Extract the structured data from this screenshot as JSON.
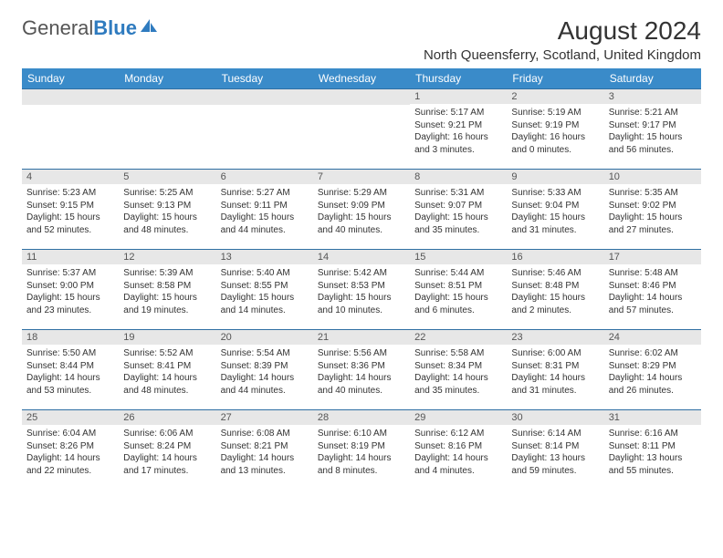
{
  "brand": {
    "name_gray": "General",
    "name_blue": "Blue",
    "icon_color": "#2f7bbf"
  },
  "header": {
    "month_title": "August 2024",
    "location": "North Queensferry, Scotland, United Kingdom"
  },
  "calendar": {
    "day_headers": [
      "Sunday",
      "Monday",
      "Tuesday",
      "Wednesday",
      "Thursday",
      "Friday",
      "Saturday"
    ],
    "header_bg": "#3a8bc9",
    "header_text_color": "#ffffff",
    "row_divider_color": "#2f6fa3",
    "daynum_bg": "#e7e7e7",
    "weeks": [
      [
        {
          "day": "",
          "sunrise": "",
          "sunset": "",
          "daylight": ""
        },
        {
          "day": "",
          "sunrise": "",
          "sunset": "",
          "daylight": ""
        },
        {
          "day": "",
          "sunrise": "",
          "sunset": "",
          "daylight": ""
        },
        {
          "day": "",
          "sunrise": "",
          "sunset": "",
          "daylight": ""
        },
        {
          "day": "1",
          "sunrise": "Sunrise: 5:17 AM",
          "sunset": "Sunset: 9:21 PM",
          "daylight": "Daylight: 16 hours and 3 minutes."
        },
        {
          "day": "2",
          "sunrise": "Sunrise: 5:19 AM",
          "sunset": "Sunset: 9:19 PM",
          "daylight": "Daylight: 16 hours and 0 minutes."
        },
        {
          "day": "3",
          "sunrise": "Sunrise: 5:21 AM",
          "sunset": "Sunset: 9:17 PM",
          "daylight": "Daylight: 15 hours and 56 minutes."
        }
      ],
      [
        {
          "day": "4",
          "sunrise": "Sunrise: 5:23 AM",
          "sunset": "Sunset: 9:15 PM",
          "daylight": "Daylight: 15 hours and 52 minutes."
        },
        {
          "day": "5",
          "sunrise": "Sunrise: 5:25 AM",
          "sunset": "Sunset: 9:13 PM",
          "daylight": "Daylight: 15 hours and 48 minutes."
        },
        {
          "day": "6",
          "sunrise": "Sunrise: 5:27 AM",
          "sunset": "Sunset: 9:11 PM",
          "daylight": "Daylight: 15 hours and 44 minutes."
        },
        {
          "day": "7",
          "sunrise": "Sunrise: 5:29 AM",
          "sunset": "Sunset: 9:09 PM",
          "daylight": "Daylight: 15 hours and 40 minutes."
        },
        {
          "day": "8",
          "sunrise": "Sunrise: 5:31 AM",
          "sunset": "Sunset: 9:07 PM",
          "daylight": "Daylight: 15 hours and 35 minutes."
        },
        {
          "day": "9",
          "sunrise": "Sunrise: 5:33 AM",
          "sunset": "Sunset: 9:04 PM",
          "daylight": "Daylight: 15 hours and 31 minutes."
        },
        {
          "day": "10",
          "sunrise": "Sunrise: 5:35 AM",
          "sunset": "Sunset: 9:02 PM",
          "daylight": "Daylight: 15 hours and 27 minutes."
        }
      ],
      [
        {
          "day": "11",
          "sunrise": "Sunrise: 5:37 AM",
          "sunset": "Sunset: 9:00 PM",
          "daylight": "Daylight: 15 hours and 23 minutes."
        },
        {
          "day": "12",
          "sunrise": "Sunrise: 5:39 AM",
          "sunset": "Sunset: 8:58 PM",
          "daylight": "Daylight: 15 hours and 19 minutes."
        },
        {
          "day": "13",
          "sunrise": "Sunrise: 5:40 AM",
          "sunset": "Sunset: 8:55 PM",
          "daylight": "Daylight: 15 hours and 14 minutes."
        },
        {
          "day": "14",
          "sunrise": "Sunrise: 5:42 AM",
          "sunset": "Sunset: 8:53 PM",
          "daylight": "Daylight: 15 hours and 10 minutes."
        },
        {
          "day": "15",
          "sunrise": "Sunrise: 5:44 AM",
          "sunset": "Sunset: 8:51 PM",
          "daylight": "Daylight: 15 hours and 6 minutes."
        },
        {
          "day": "16",
          "sunrise": "Sunrise: 5:46 AM",
          "sunset": "Sunset: 8:48 PM",
          "daylight": "Daylight: 15 hours and 2 minutes."
        },
        {
          "day": "17",
          "sunrise": "Sunrise: 5:48 AM",
          "sunset": "Sunset: 8:46 PM",
          "daylight": "Daylight: 14 hours and 57 minutes."
        }
      ],
      [
        {
          "day": "18",
          "sunrise": "Sunrise: 5:50 AM",
          "sunset": "Sunset: 8:44 PM",
          "daylight": "Daylight: 14 hours and 53 minutes."
        },
        {
          "day": "19",
          "sunrise": "Sunrise: 5:52 AM",
          "sunset": "Sunset: 8:41 PM",
          "daylight": "Daylight: 14 hours and 48 minutes."
        },
        {
          "day": "20",
          "sunrise": "Sunrise: 5:54 AM",
          "sunset": "Sunset: 8:39 PM",
          "daylight": "Daylight: 14 hours and 44 minutes."
        },
        {
          "day": "21",
          "sunrise": "Sunrise: 5:56 AM",
          "sunset": "Sunset: 8:36 PM",
          "daylight": "Daylight: 14 hours and 40 minutes."
        },
        {
          "day": "22",
          "sunrise": "Sunrise: 5:58 AM",
          "sunset": "Sunset: 8:34 PM",
          "daylight": "Daylight: 14 hours and 35 minutes."
        },
        {
          "day": "23",
          "sunrise": "Sunrise: 6:00 AM",
          "sunset": "Sunset: 8:31 PM",
          "daylight": "Daylight: 14 hours and 31 minutes."
        },
        {
          "day": "24",
          "sunrise": "Sunrise: 6:02 AM",
          "sunset": "Sunset: 8:29 PM",
          "daylight": "Daylight: 14 hours and 26 minutes."
        }
      ],
      [
        {
          "day": "25",
          "sunrise": "Sunrise: 6:04 AM",
          "sunset": "Sunset: 8:26 PM",
          "daylight": "Daylight: 14 hours and 22 minutes."
        },
        {
          "day": "26",
          "sunrise": "Sunrise: 6:06 AM",
          "sunset": "Sunset: 8:24 PM",
          "daylight": "Daylight: 14 hours and 17 minutes."
        },
        {
          "day": "27",
          "sunrise": "Sunrise: 6:08 AM",
          "sunset": "Sunset: 8:21 PM",
          "daylight": "Daylight: 14 hours and 13 minutes."
        },
        {
          "day": "28",
          "sunrise": "Sunrise: 6:10 AM",
          "sunset": "Sunset: 8:19 PM",
          "daylight": "Daylight: 14 hours and 8 minutes."
        },
        {
          "day": "29",
          "sunrise": "Sunrise: 6:12 AM",
          "sunset": "Sunset: 8:16 PM",
          "daylight": "Daylight: 14 hours and 4 minutes."
        },
        {
          "day": "30",
          "sunrise": "Sunrise: 6:14 AM",
          "sunset": "Sunset: 8:14 PM",
          "daylight": "Daylight: 13 hours and 59 minutes."
        },
        {
          "day": "31",
          "sunrise": "Sunrise: 6:16 AM",
          "sunset": "Sunset: 8:11 PM",
          "daylight": "Daylight: 13 hours and 55 minutes."
        }
      ]
    ]
  }
}
